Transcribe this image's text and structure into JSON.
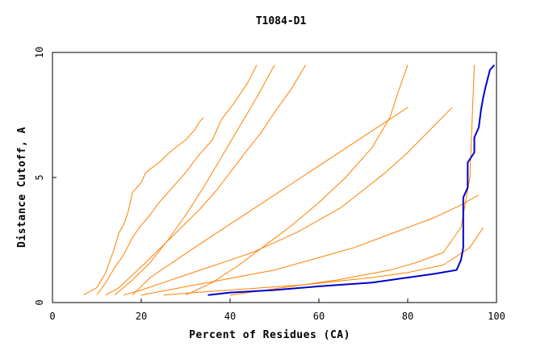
{
  "chart_data": {
    "type": "line",
    "title": "T1084-D1",
    "xlabel": "Percent of Residues (CA)",
    "ylabel": "Distance Cutoff, A",
    "xlim": [
      0,
      100
    ],
    "ylim": [
      0,
      10
    ],
    "x_ticks": [
      "0",
      "20",
      "40",
      "60",
      "80",
      "100"
    ],
    "y_ticks": [
      "0",
      "5",
      "10"
    ],
    "grid": false,
    "colors": {
      "background_series": "#ff8000",
      "highlight": "#0000cc"
    },
    "series": [
      {
        "values_x": [
          35,
          40,
          50,
          60,
          72,
          80,
          86,
          91,
          92,
          92.5,
          92.5,
          93.5,
          93.5,
          95,
          95,
          96,
          96.5,
          97,
          97.5,
          98.5,
          99.5
        ],
        "values_y": [
          0.3,
          0.4,
          0.5,
          0.65,
          0.8,
          1.0,
          1.15,
          1.3,
          1.7,
          2.2,
          4.2,
          4.6,
          5.6,
          6.0,
          6.6,
          7.0,
          7.7,
          8.2,
          8.6,
          9.3,
          9.5
        ],
        "highlight": true
      },
      {
        "values_x": [
          7,
          10,
          12,
          14,
          15,
          16,
          17,
          18,
          20,
          21,
          24,
          27,
          30,
          32,
          33,
          34
        ],
        "values_y": [
          0.3,
          0.6,
          1.2,
          2.2,
          2.8,
          3.1,
          3.6,
          4.4,
          4.8,
          5.2,
          5.6,
          6.1,
          6.5,
          6.9,
          7.2,
          7.4
        ]
      },
      {
        "values_x": [
          10,
          12,
          14,
          16,
          18,
          20,
          22,
          24,
          27,
          30,
          33,
          36,
          38,
          41,
          44,
          46
        ],
        "values_y": [
          0.3,
          0.8,
          1.4,
          1.9,
          2.6,
          3.1,
          3.5,
          4.0,
          4.6,
          5.2,
          5.9,
          6.5,
          7.3,
          8.0,
          8.8,
          9.5
        ]
      },
      {
        "values_x": [
          12,
          15,
          18,
          21,
          25,
          29,
          33,
          37,
          40,
          43,
          47,
          50,
          54,
          57
        ],
        "values_y": [
          0.3,
          0.6,
          1.1,
          1.6,
          2.3,
          3.0,
          3.7,
          4.5,
          5.2,
          5.9,
          6.8,
          7.6,
          8.6,
          9.5
        ]
      },
      {
        "values_x": [
          16,
          20,
          25,
          30,
          35,
          40,
          45,
          50,
          55,
          60,
          65,
          70,
          75,
          80,
          85,
          90
        ],
        "values_y": [
          0.3,
          0.5,
          0.8,
          1.1,
          1.4,
          1.7,
          2.0,
          2.4,
          2.8,
          3.3,
          3.8,
          4.5,
          5.2,
          6.0,
          6.9,
          7.8
        ]
      },
      {
        "values_x": [
          20,
          26,
          32,
          38,
          44,
          50,
          56,
          62,
          68,
          74,
          80,
          86,
          92,
          96
        ],
        "values_y": [
          0.3,
          0.5,
          0.7,
          0.9,
          1.1,
          1.3,
          1.6,
          1.9,
          2.2,
          2.6,
          3.0,
          3.4,
          3.9,
          4.3
        ]
      },
      {
        "values_x": [
          25,
          32,
          40,
          48,
          56,
          64,
          72,
          80,
          88,
          94,
          97
        ],
        "values_y": [
          0.3,
          0.4,
          0.5,
          0.6,
          0.7,
          0.85,
          1.0,
          1.2,
          1.5,
          2.2,
          3.0
        ]
      },
      {
        "values_x": [
          30,
          36,
          42,
          48,
          54,
          60,
          66,
          72,
          76,
          78,
          80
        ],
        "values_y": [
          0.3,
          0.8,
          1.5,
          2.3,
          3.1,
          4.0,
          5.0,
          6.2,
          7.4,
          8.5,
          9.5
        ]
      },
      {
        "values_x": [
          18,
          22,
          27,
          32,
          38,
          44,
          50,
          56,
          62,
          68,
          74,
          80
        ],
        "values_y": [
          0.3,
          1.0,
          1.6,
          2.2,
          2.9,
          3.6,
          4.3,
          5.0,
          5.7,
          6.4,
          7.1,
          7.8
        ]
      },
      {
        "values_x": [
          40,
          46,
          52,
          58,
          64,
          70,
          76,
          82,
          88,
          92,
          94,
          95
        ],
        "values_y": [
          0.3,
          0.45,
          0.6,
          0.75,
          0.9,
          1.1,
          1.3,
          1.6,
          2.0,
          3.0,
          5.0,
          9.5
        ]
      },
      {
        "values_x": [
          14,
          18,
          22,
          26,
          30,
          34,
          38,
          42,
          46,
          50
        ],
        "values_y": [
          0.3,
          0.9,
          1.6,
          2.5,
          3.5,
          4.6,
          5.8,
          7.0,
          8.2,
          9.5
        ]
      }
    ]
  }
}
